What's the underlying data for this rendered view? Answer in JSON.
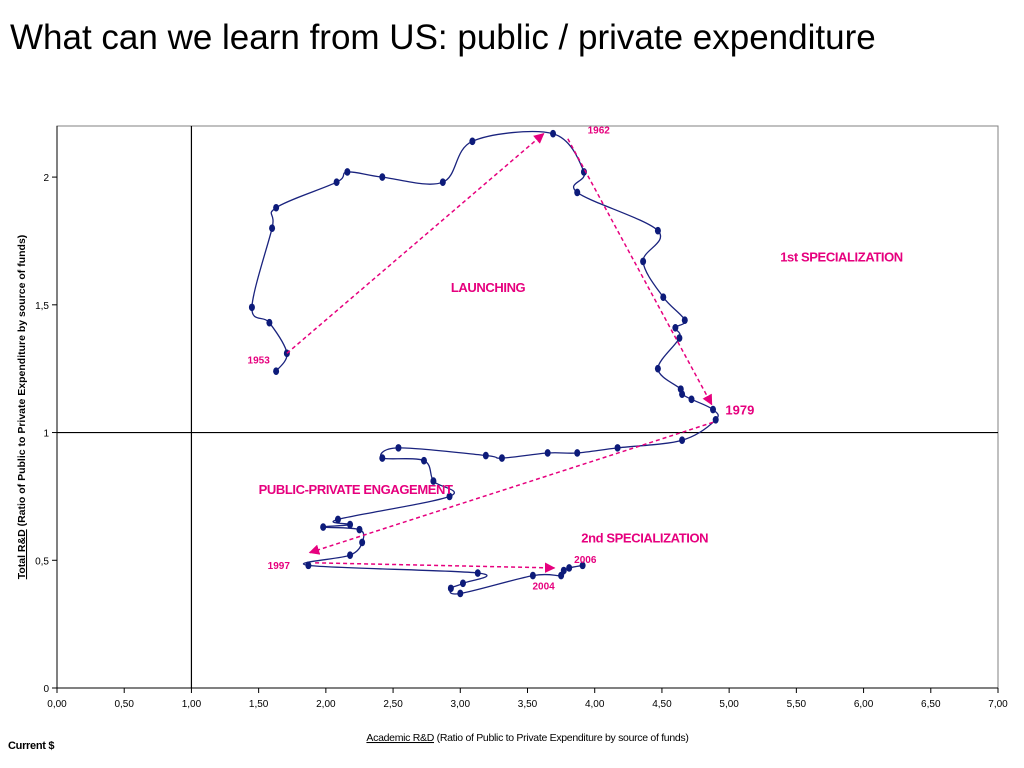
{
  "slide_title": "What can we learn from US: public / private expenditure",
  "footnote": "Current $",
  "colors": {
    "line": "#1a237e",
    "marker": "#0d1b7a",
    "annotation": "#e6007e",
    "axis": "#000000"
  },
  "chart_data": {
    "type": "line",
    "xlabel_underlined": "Academic R&D",
    "xlabel_rest": " (Ratio of Public to Private Expenditure by source of funds)",
    "ylabel_underlined": "Total R&D",
    "ylabel_rest": " (Ratio of Public to Private Expenditure by source of funds)",
    "xlim": [
      0,
      7
    ],
    "ylim": [
      0,
      2.2
    ],
    "xticks": [
      "0,00",
      "0,50",
      "1,00",
      "1,50",
      "2,00",
      "2,50",
      "3,00",
      "3,50",
      "4,00",
      "4,50",
      "5,00",
      "5,50",
      "6,00",
      "6,50",
      "7,00"
    ],
    "xtick_values": [
      0,
      0.5,
      1,
      1.5,
      2,
      2.5,
      3,
      3.5,
      4,
      4.5,
      5,
      5.5,
      6,
      6.5,
      7
    ],
    "yticks": [
      "0",
      "0,5",
      "1",
      "1,5",
      "2"
    ],
    "ytick_values": [
      0,
      0.5,
      1,
      1.5,
      2
    ],
    "reference_lines": {
      "x": 1,
      "y": 1
    },
    "series": [
      {
        "points": [
          [
            1.63,
            1.24
          ],
          [
            1.71,
            1.31
          ],
          [
            1.58,
            1.43
          ],
          [
            1.45,
            1.49
          ],
          [
            1.6,
            1.8
          ],
          [
            1.63,
            1.88
          ],
          [
            2.08,
            1.98
          ],
          [
            2.16,
            2.02
          ],
          [
            2.42,
            2.0
          ],
          [
            2.87,
            1.98
          ],
          [
            3.09,
            2.14
          ],
          [
            3.69,
            2.17
          ],
          [
            3.92,
            2.02
          ],
          [
            3.87,
            1.94
          ],
          [
            4.47,
            1.79
          ],
          [
            4.36,
            1.67
          ],
          [
            4.51,
            1.53
          ],
          [
            4.67,
            1.44
          ],
          [
            4.6,
            1.41
          ],
          [
            4.63,
            1.37
          ],
          [
            4.47,
            1.25
          ],
          [
            4.64,
            1.17
          ],
          [
            4.65,
            1.15
          ],
          [
            4.72,
            1.13
          ],
          [
            4.88,
            1.09
          ],
          [
            4.9,
            1.05
          ],
          [
            4.65,
            0.97
          ],
          [
            4.17,
            0.94
          ],
          [
            3.87,
            0.92
          ],
          [
            3.65,
            0.92
          ],
          [
            3.31,
            0.9
          ],
          [
            3.19,
            0.91
          ],
          [
            2.54,
            0.94
          ],
          [
            2.42,
            0.9
          ],
          [
            2.73,
            0.89
          ],
          [
            2.8,
            0.81
          ],
          [
            2.92,
            0.75
          ],
          [
            2.09,
            0.66
          ],
          [
            2.18,
            0.64
          ],
          [
            1.98,
            0.63
          ],
          [
            2.25,
            0.62
          ],
          [
            2.27,
            0.57
          ],
          [
            2.18,
            0.52
          ],
          [
            1.87,
            0.48
          ],
          [
            3.13,
            0.45
          ],
          [
            3.02,
            0.41
          ],
          [
            2.93,
            0.39
          ],
          [
            3.0,
            0.37
          ],
          [
            3.54,
            0.44
          ],
          [
            3.75,
            0.44
          ],
          [
            3.77,
            0.46
          ],
          [
            3.81,
            0.47
          ],
          [
            3.91,
            0.48
          ]
        ]
      }
    ],
    "annotations": {
      "year_labels": [
        {
          "text": "1953",
          "x": 1.5,
          "y": 1.27
        },
        {
          "text": "1962",
          "x": 4.03,
          "y": 2.17
        },
        {
          "text": "1979",
          "x": 5.08,
          "y": 1.07
        },
        {
          "text": "1997",
          "x": 1.65,
          "y": 0.465
        },
        {
          "text": "2004",
          "x": 3.62,
          "y": 0.385
        },
        {
          "text": "2006",
          "x": 3.93,
          "y": 0.49
        }
      ],
      "phase_labels": [
        {
          "text": "LAUNCHING",
          "x": 2.93,
          "y": 1.55
        },
        {
          "text": "1st SPECIALIZATION",
          "x": 5.38,
          "y": 1.67
        },
        {
          "text": "PUBLIC-PRIVATE ENGAGEMENT",
          "x": 1.5,
          "y": 0.76
        },
        {
          "text": "2nd SPECIALIZATION",
          "x": 3.9,
          "y": 0.57
        }
      ],
      "arrows": [
        {
          "from": [
            1.71,
            1.31
          ],
          "to": [
            3.62,
            2.17
          ]
        },
        {
          "from": [
            3.8,
            2.15
          ],
          "to": [
            4.87,
            1.11
          ]
        },
        {
          "from": [
            4.88,
            1.04
          ],
          "to": [
            1.88,
            0.53
          ]
        },
        {
          "from": [
            1.92,
            0.49
          ],
          "to": [
            3.7,
            0.47
          ]
        }
      ]
    }
  }
}
